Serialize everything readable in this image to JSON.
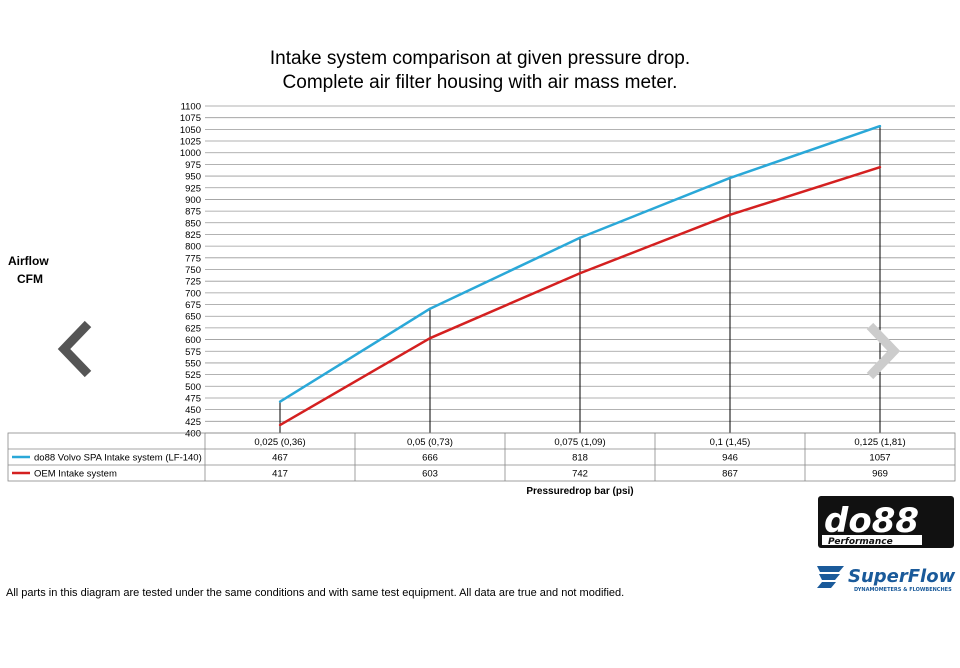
{
  "title_line1": "Intake system comparison at given pressure drop.",
  "title_line2": "Complete air filter housing with air mass meter.",
  "footnote": "All parts in this diagram are tested under the same conditions and with same test equipment. All data are true and not modified.",
  "logos": {
    "do88_main": "do88",
    "do88_sub": "Performance",
    "superflow_main": "SuperFlow",
    "superflow_sub": "DYNAMOMETERS & FLOWBENCHES"
  },
  "colors": {
    "series1": "#2aa8d8",
    "series2": "#d42020",
    "grid": "#888888",
    "nav_left": "#555555",
    "nav_right": "#cccccc"
  },
  "icons": {
    "prev": "chevron-left-icon",
    "next": "chevron-right-icon"
  },
  "chart_data": {
    "type": "line",
    "ylabel": "Airflow CFM",
    "ylabel_line1": "Airflow",
    "ylabel_line2": "CFM",
    "xlabel": "Pressuredrop bar (psi)",
    "ylim": [
      400,
      1100
    ],
    "ytick_step": 25,
    "grid": true,
    "legend": "table-below",
    "categories": [
      "0,025 (0,36)",
      "0,05 (0,73)",
      "0,075 (1,09)",
      "0,1 (1,45)",
      "0,125 (1,81)"
    ],
    "series": [
      {
        "name": "do88 Volvo SPA Intake system (LF-140)",
        "values": [
          467,
          666,
          818,
          946,
          1057
        ],
        "color": "#2aa8d8"
      },
      {
        "name": "OEM Intake system",
        "values": [
          417,
          603,
          742,
          867,
          969
        ],
        "color": "#d42020"
      }
    ]
  }
}
